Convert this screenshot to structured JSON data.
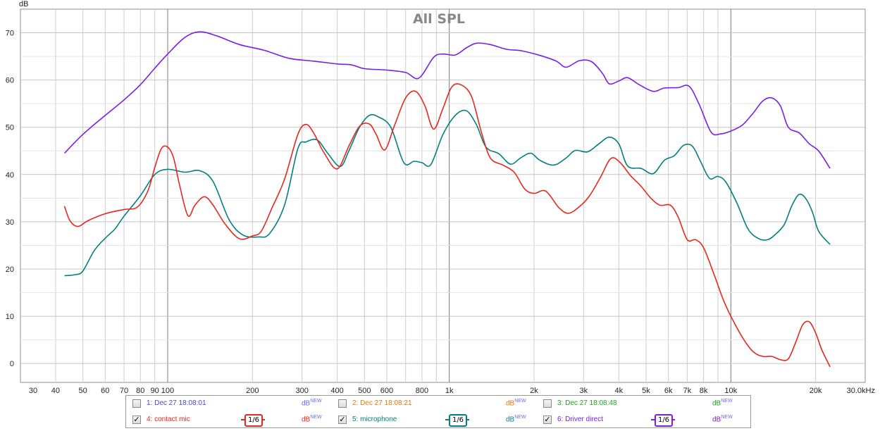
{
  "chart_data": {
    "type": "line",
    "title": "All SPL",
    "ylabel": "dB",
    "xunit": "Hz",
    "xscale": "log",
    "xlim": [
      30,
      30000
    ],
    "ylim": [
      -4,
      75
    ],
    "grid": true,
    "x_ticks": [
      {
        "value": 30,
        "label": "30"
      },
      {
        "value": 40,
        "label": "40"
      },
      {
        "value": 50,
        "label": "50"
      },
      {
        "value": 60,
        "label": "60"
      },
      {
        "value": 70,
        "label": "70"
      },
      {
        "value": 80,
        "label": "80"
      },
      {
        "value": 90,
        "label": "90"
      },
      {
        "value": 100,
        "label": "100"
      },
      {
        "value": 200,
        "label": "200"
      },
      {
        "value": 300,
        "label": "300"
      },
      {
        "value": 400,
        "label": "400"
      },
      {
        "value": 500,
        "label": "500"
      },
      {
        "value": 600,
        "label": "600"
      },
      {
        "value": 800,
        "label": "800"
      },
      {
        "value": 1000,
        "label": "1k"
      },
      {
        "value": 2000,
        "label": "2k"
      },
      {
        "value": 3000,
        "label": "3k"
      },
      {
        "value": 4000,
        "label": "4k"
      },
      {
        "value": 5000,
        "label": "5k"
      },
      {
        "value": 6000,
        "label": "6k"
      },
      {
        "value": 7000,
        "label": "7k"
      },
      {
        "value": 8000,
        "label": "8k"
      },
      {
        "value": 10000,
        "label": "10k"
      },
      {
        "value": 20000,
        "label": "20k"
      },
      {
        "value": 30000,
        "label": "30.0kHz"
      }
    ],
    "y_ticks": [
      0,
      10,
      20,
      30,
      40,
      50,
      60,
      70
    ],
    "series": [
      {
        "name": "6: Driver direct",
        "color": "#7a1ee8",
        "points": [
          [
            43,
            44.5
          ],
          [
            50,
            48.5
          ],
          [
            60,
            52.5
          ],
          [
            70,
            55.8
          ],
          [
            80,
            59
          ],
          [
            90,
            62.5
          ],
          [
            100,
            65.5
          ],
          [
            115,
            69
          ],
          [
            130,
            70.2
          ],
          [
            150,
            69.3
          ],
          [
            180,
            67.5
          ],
          [
            220,
            66.3
          ],
          [
            270,
            64.6
          ],
          [
            330,
            64
          ],
          [
            400,
            63.4
          ],
          [
            450,
            63.2
          ],
          [
            500,
            62.4
          ],
          [
            600,
            62.1
          ],
          [
            700,
            61.6
          ],
          [
            780,
            60.4
          ],
          [
            880,
            64.8
          ],
          [
            950,
            65.5
          ],
          [
            1050,
            65.3
          ],
          [
            1150,
            66.8
          ],
          [
            1250,
            67.8
          ],
          [
            1400,
            67.5
          ],
          [
            1600,
            66.5
          ],
          [
            1800,
            66.2
          ],
          [
            2100,
            65.2
          ],
          [
            2400,
            64
          ],
          [
            2600,
            62.7
          ],
          [
            2900,
            64.1
          ],
          [
            3200,
            63.9
          ],
          [
            3500,
            61.4
          ],
          [
            3700,
            59.2
          ],
          [
            4000,
            59.8
          ],
          [
            4300,
            60.5
          ],
          [
            4700,
            59.1
          ],
          [
            5300,
            57.6
          ],
          [
            5800,
            58.3
          ],
          [
            6500,
            58.4
          ],
          [
            7100,
            58.7
          ],
          [
            7700,
            55
          ],
          [
            8500,
            49
          ],
          [
            9200,
            48.6
          ],
          [
            10000,
            49.2
          ],
          [
            11000,
            50.5
          ],
          [
            12000,
            53
          ],
          [
            13000,
            55.6
          ],
          [
            14000,
            56.2
          ],
          [
            15000,
            54.5
          ],
          [
            16000,
            50
          ],
          [
            17500,
            48.8
          ],
          [
            19000,
            46.5
          ],
          [
            20500,
            45
          ],
          [
            22500,
            41.3
          ]
        ]
      },
      {
        "name": "5: microphone",
        "color": "#008080",
        "points": [
          [
            43,
            18.6
          ],
          [
            47,
            18.8
          ],
          [
            50,
            19.6
          ],
          [
            55,
            24
          ],
          [
            60,
            26.5
          ],
          [
            65,
            28.5
          ],
          [
            70,
            31.2
          ],
          [
            80,
            35.5
          ],
          [
            90,
            40
          ],
          [
            100,
            41.1
          ],
          [
            115,
            40.5
          ],
          [
            130,
            40.8
          ],
          [
            145,
            38.5
          ],
          [
            165,
            30.5
          ],
          [
            185,
            27.2
          ],
          [
            210,
            26.8
          ],
          [
            230,
            27.5
          ],
          [
            260,
            33.5
          ],
          [
            290,
            45.5
          ],
          [
            310,
            46.9
          ],
          [
            340,
            47.3
          ],
          [
            370,
            44.5
          ],
          [
            410,
            41.7
          ],
          [
            440,
            45
          ],
          [
            480,
            50
          ],
          [
            520,
            52.5
          ],
          [
            560,
            52.2
          ],
          [
            620,
            50
          ],
          [
            690,
            42.5
          ],
          [
            750,
            42.8
          ],
          [
            800,
            42.5
          ],
          [
            860,
            42.1
          ],
          [
            950,
            48.5
          ],
          [
            1050,
            52.5
          ],
          [
            1150,
            53.5
          ],
          [
            1250,
            50.5
          ],
          [
            1350,
            45.8
          ],
          [
            1500,
            44.4
          ],
          [
            1650,
            42.2
          ],
          [
            1800,
            43.6
          ],
          [
            1950,
            44.5
          ],
          [
            2100,
            43
          ],
          [
            2350,
            42
          ],
          [
            2600,
            43.5
          ],
          [
            2800,
            45.1
          ],
          [
            3100,
            44.8
          ],
          [
            3400,
            46.5
          ],
          [
            3700,
            47.9
          ],
          [
            4000,
            46.5
          ],
          [
            4300,
            41.8
          ],
          [
            4800,
            41.3
          ],
          [
            5300,
            40.2
          ],
          [
            5800,
            43
          ],
          [
            6300,
            44
          ],
          [
            6800,
            46.2
          ],
          [
            7300,
            46
          ],
          [
            7800,
            42.8
          ],
          [
            8400,
            39.2
          ],
          [
            9000,
            39.6
          ],
          [
            9600,
            38.4
          ],
          [
            10500,
            34
          ],
          [
            11500,
            28.5
          ],
          [
            12500,
            26.5
          ],
          [
            13500,
            26.2
          ],
          [
            14500,
            27.5
          ],
          [
            15500,
            29.5
          ],
          [
            16500,
            33.5
          ],
          [
            17500,
            35.8
          ],
          [
            18500,
            34.8
          ],
          [
            19500,
            32
          ],
          [
            20500,
            28
          ],
          [
            22500,
            25.2
          ]
        ]
      },
      {
        "name": "4: contact mic",
        "color": "#e8271e",
        "points": [
          [
            43,
            33.3
          ],
          [
            45,
            30.2
          ],
          [
            48,
            29
          ],
          [
            52,
            30.2
          ],
          [
            60,
            31.7
          ],
          [
            70,
            32.6
          ],
          [
            78,
            33.1
          ],
          [
            85,
            36.5
          ],
          [
            90,
            41.5
          ],
          [
            95,
            45.5
          ],
          [
            100,
            45.8
          ],
          [
            105,
            43.5
          ],
          [
            110,
            38
          ],
          [
            118,
            31.3
          ],
          [
            125,
            33.5
          ],
          [
            135,
            35.3
          ],
          [
            145,
            33.5
          ],
          [
            160,
            29.5
          ],
          [
            180,
            26.4
          ],
          [
            200,
            27
          ],
          [
            215,
            28
          ],
          [
            235,
            33
          ],
          [
            260,
            39
          ],
          [
            290,
            48.5
          ],
          [
            310,
            50.6
          ],
          [
            330,
            48.8
          ],
          [
            360,
            44.5
          ],
          [
            400,
            41.2
          ],
          [
            440,
            46
          ],
          [
            480,
            50.2
          ],
          [
            520,
            50.7
          ],
          [
            550,
            48.5
          ],
          [
            590,
            45.2
          ],
          [
            640,
            50.5
          ],
          [
            700,
            56.2
          ],
          [
            760,
            57.6
          ],
          [
            820,
            54.5
          ],
          [
            880,
            49.6
          ],
          [
            950,
            54
          ],
          [
            1020,
            58.5
          ],
          [
            1100,
            59
          ],
          [
            1200,
            56.5
          ],
          [
            1300,
            49
          ],
          [
            1400,
            43.5
          ],
          [
            1550,
            42
          ],
          [
            1700,
            40.5
          ],
          [
            1850,
            37
          ],
          [
            2000,
            36
          ],
          [
            2200,
            36.5
          ],
          [
            2450,
            33
          ],
          [
            2650,
            31.8
          ],
          [
            2900,
            33.2
          ],
          [
            3150,
            35.5
          ],
          [
            3450,
            39.5
          ],
          [
            3750,
            43.4
          ],
          [
            4050,
            42.5
          ],
          [
            4400,
            39.8
          ],
          [
            4800,
            37.5
          ],
          [
            5200,
            35
          ],
          [
            5600,
            33.5
          ],
          [
            6100,
            33.5
          ],
          [
            6500,
            31
          ],
          [
            7000,
            26.2
          ],
          [
            7500,
            26.2
          ],
          [
            8000,
            24.5
          ],
          [
            8700,
            19
          ],
          [
            9400,
            13.5
          ],
          [
            10000,
            10
          ],
          [
            11000,
            5.5
          ],
          [
            12000,
            2.5
          ],
          [
            13000,
            1.5
          ],
          [
            14000,
            1.5
          ],
          [
            15000,
            0.8
          ],
          [
            16000,
            1
          ],
          [
            17000,
            4.5
          ],
          [
            18000,
            8.2
          ],
          [
            19000,
            8.8
          ],
          [
            20000,
            6.5
          ],
          [
            21000,
            3
          ],
          [
            22500,
            -0.7
          ]
        ]
      }
    ],
    "legend_placement": "bottom"
  },
  "legend": {
    "rows": [
      [
        {
          "label": "1: Dec 27 18:08:01",
          "checked": false,
          "color": "#4848c0",
          "db": "dB",
          "db_color": "#6a6af0",
          "smoothing": ""
        },
        {
          "label": "2: Dec 27 18:08:21",
          "checked": false,
          "color": "#e07810",
          "db": "dB",
          "db_color": "#e07810",
          "smoothing": ""
        },
        {
          "label": "3: Dec 27 18:08:48",
          "checked": false,
          "color": "#20a020",
          "db": "dB",
          "db_color": "#20a020",
          "smoothing": ""
        }
      ],
      [
        {
          "label": "4: contact mic",
          "checked": true,
          "color": "#e8271e",
          "db": "dB",
          "db_color": "#e8271e",
          "smoothing": "1/6"
        },
        {
          "label": "5: microphone",
          "checked": true,
          "color": "#008080",
          "db": "dB",
          "db_color": "#008080",
          "smoothing": "1/6"
        },
        {
          "label": "6: Driver direct",
          "checked": true,
          "color": "#7a1ee8",
          "db": "dB",
          "db_color": "#7a1ee8",
          "smoothing": "1/6"
        }
      ]
    ],
    "new_tag": "NEW",
    "check_mark": "✓"
  }
}
